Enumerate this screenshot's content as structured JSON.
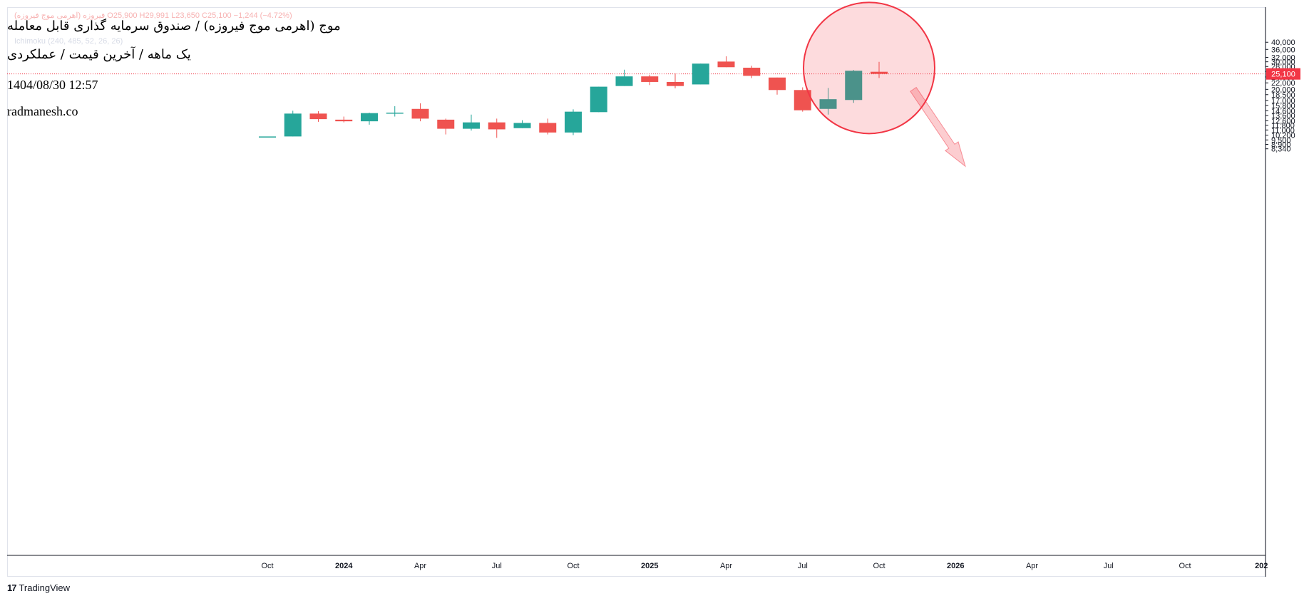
{
  "header": {
    "faded_legend": "فیروزه (اهرمی موج فیروزه) O25,900 H29,991 L23,650 C25,100 −1,244 (−4.72%)",
    "faded_indicator": "Ichimoku (240, 485, 52, 26, 26)",
    "title_line1": "موج (اهرمی موج فیروزه) / صندوق سرمایه گذاری قابل معامله",
    "title_line2": "یک ماهه / آخرین قیمت / عملکردی",
    "timestamp": "1404/08/30 12:57",
    "website": "radmanesh.co"
  },
  "footer": {
    "brand_logo": "17",
    "brand_name": "TradingView"
  },
  "price_label": "25,100",
  "colors": {
    "up": "#26a69a",
    "down": "#ef5350",
    "last_price": "#f23645",
    "highlight": "#f23645"
  },
  "chart_data": {
    "type": "candlestick",
    "scale": "log",
    "y_ticks": [
      8340,
      8900,
      9500,
      10200,
      11000,
      11800,
      12600,
      13600,
      14600,
      15800,
      17000,
      18500,
      20000,
      22000,
      24000,
      26000,
      28000,
      30000,
      32000,
      36000,
      40000
    ],
    "y_tick_labels": [
      "8,340",
      "8,900",
      "9,500",
      "10,200",
      "11,000",
      "11,800",
      "12,600",
      "13,600",
      "14,600",
      "15,800",
      "17,000",
      "18,500",
      "20,000",
      "22,000",
      "24,000",
      "26,000",
      "28,000",
      "30,000",
      "32,000",
      "36,000",
      "40,000"
    ],
    "x_ticks": [
      {
        "label": "Oct",
        "index": 0,
        "bold": false
      },
      {
        "label": "2024",
        "index": 3,
        "bold": true
      },
      {
        "label": "Apr",
        "index": 6,
        "bold": false
      },
      {
        "label": "Jul",
        "index": 9,
        "bold": false
      },
      {
        "label": "Oct",
        "index": 12,
        "bold": false
      },
      {
        "label": "2025",
        "index": 15,
        "bold": true
      },
      {
        "label": "Apr",
        "index": 18,
        "bold": false
      },
      {
        "label": "Jul",
        "index": 21,
        "bold": false
      },
      {
        "label": "Oct",
        "index": 24,
        "bold": false
      },
      {
        "label": "2026",
        "index": 27,
        "bold": true
      },
      {
        "label": "Apr",
        "index": 30,
        "bold": false
      },
      {
        "label": "Jul",
        "index": 33,
        "bold": false
      },
      {
        "label": "Oct",
        "index": 36,
        "bold": false
      },
      {
        "label": "202",
        "index": 39,
        "bold": true
      }
    ],
    "candles": [
      {
        "o": 10000,
        "h": 10000,
        "l": 10000,
        "c": 10000
      },
      {
        "o": 10000,
        "h": 14600,
        "l": 10000,
        "c": 14000
      },
      {
        "o": 14000,
        "h": 14500,
        "l": 12400,
        "c": 12900
      },
      {
        "o": 12800,
        "h": 13400,
        "l": 12300,
        "c": 12500
      },
      {
        "o": 12500,
        "h": 14200,
        "l": 11900,
        "c": 14100
      },
      {
        "o": 14200,
        "h": 15600,
        "l": 13400,
        "c": 14200
      },
      {
        "o": 15000,
        "h": 16300,
        "l": 12500,
        "c": 13000
      },
      {
        "o": 12800,
        "h": 13000,
        "l": 10300,
        "c": 11200
      },
      {
        "o": 11200,
        "h": 13800,
        "l": 10900,
        "c": 12300
      },
      {
        "o": 12300,
        "h": 13000,
        "l": 9800,
        "c": 11100
      },
      {
        "o": 11300,
        "h": 12700,
        "l": 11300,
        "c": 12200
      },
      {
        "o": 12200,
        "h": 13000,
        "l": 10300,
        "c": 10600
      },
      {
        "o": 10600,
        "h": 14900,
        "l": 10200,
        "c": 14400
      },
      {
        "o": 14300,
        "h": 20800,
        "l": 14300,
        "c": 20800
      },
      {
        "o": 21000,
        "h": 26700,
        "l": 21000,
        "c": 24200
      },
      {
        "o": 24200,
        "h": 24800,
        "l": 21300,
        "c": 22300
      },
      {
        "o": 22300,
        "h": 25300,
        "l": 20300,
        "c": 21000
      },
      {
        "o": 21500,
        "h": 29200,
        "l": 21500,
        "c": 29200
      },
      {
        "o": 30100,
        "h": 32500,
        "l": 27700,
        "c": 27700
      },
      {
        "o": 27500,
        "h": 28300,
        "l": 23600,
        "c": 24400
      },
      {
        "o": 23800,
        "h": 23800,
        "l": 18500,
        "c": 19800
      },
      {
        "o": 19800,
        "h": 20600,
        "l": 14400,
        "c": 14700
      },
      {
        "o": 15000,
        "h": 20400,
        "l": 13800,
        "c": 17300
      },
      {
        "o": 17100,
        "h": 26600,
        "l": 16400,
        "c": 26300
      },
      {
        "o": 25900,
        "h": 29991,
        "l": 23650,
        "c": 25100
      }
    ],
    "last_price": 25100
  }
}
